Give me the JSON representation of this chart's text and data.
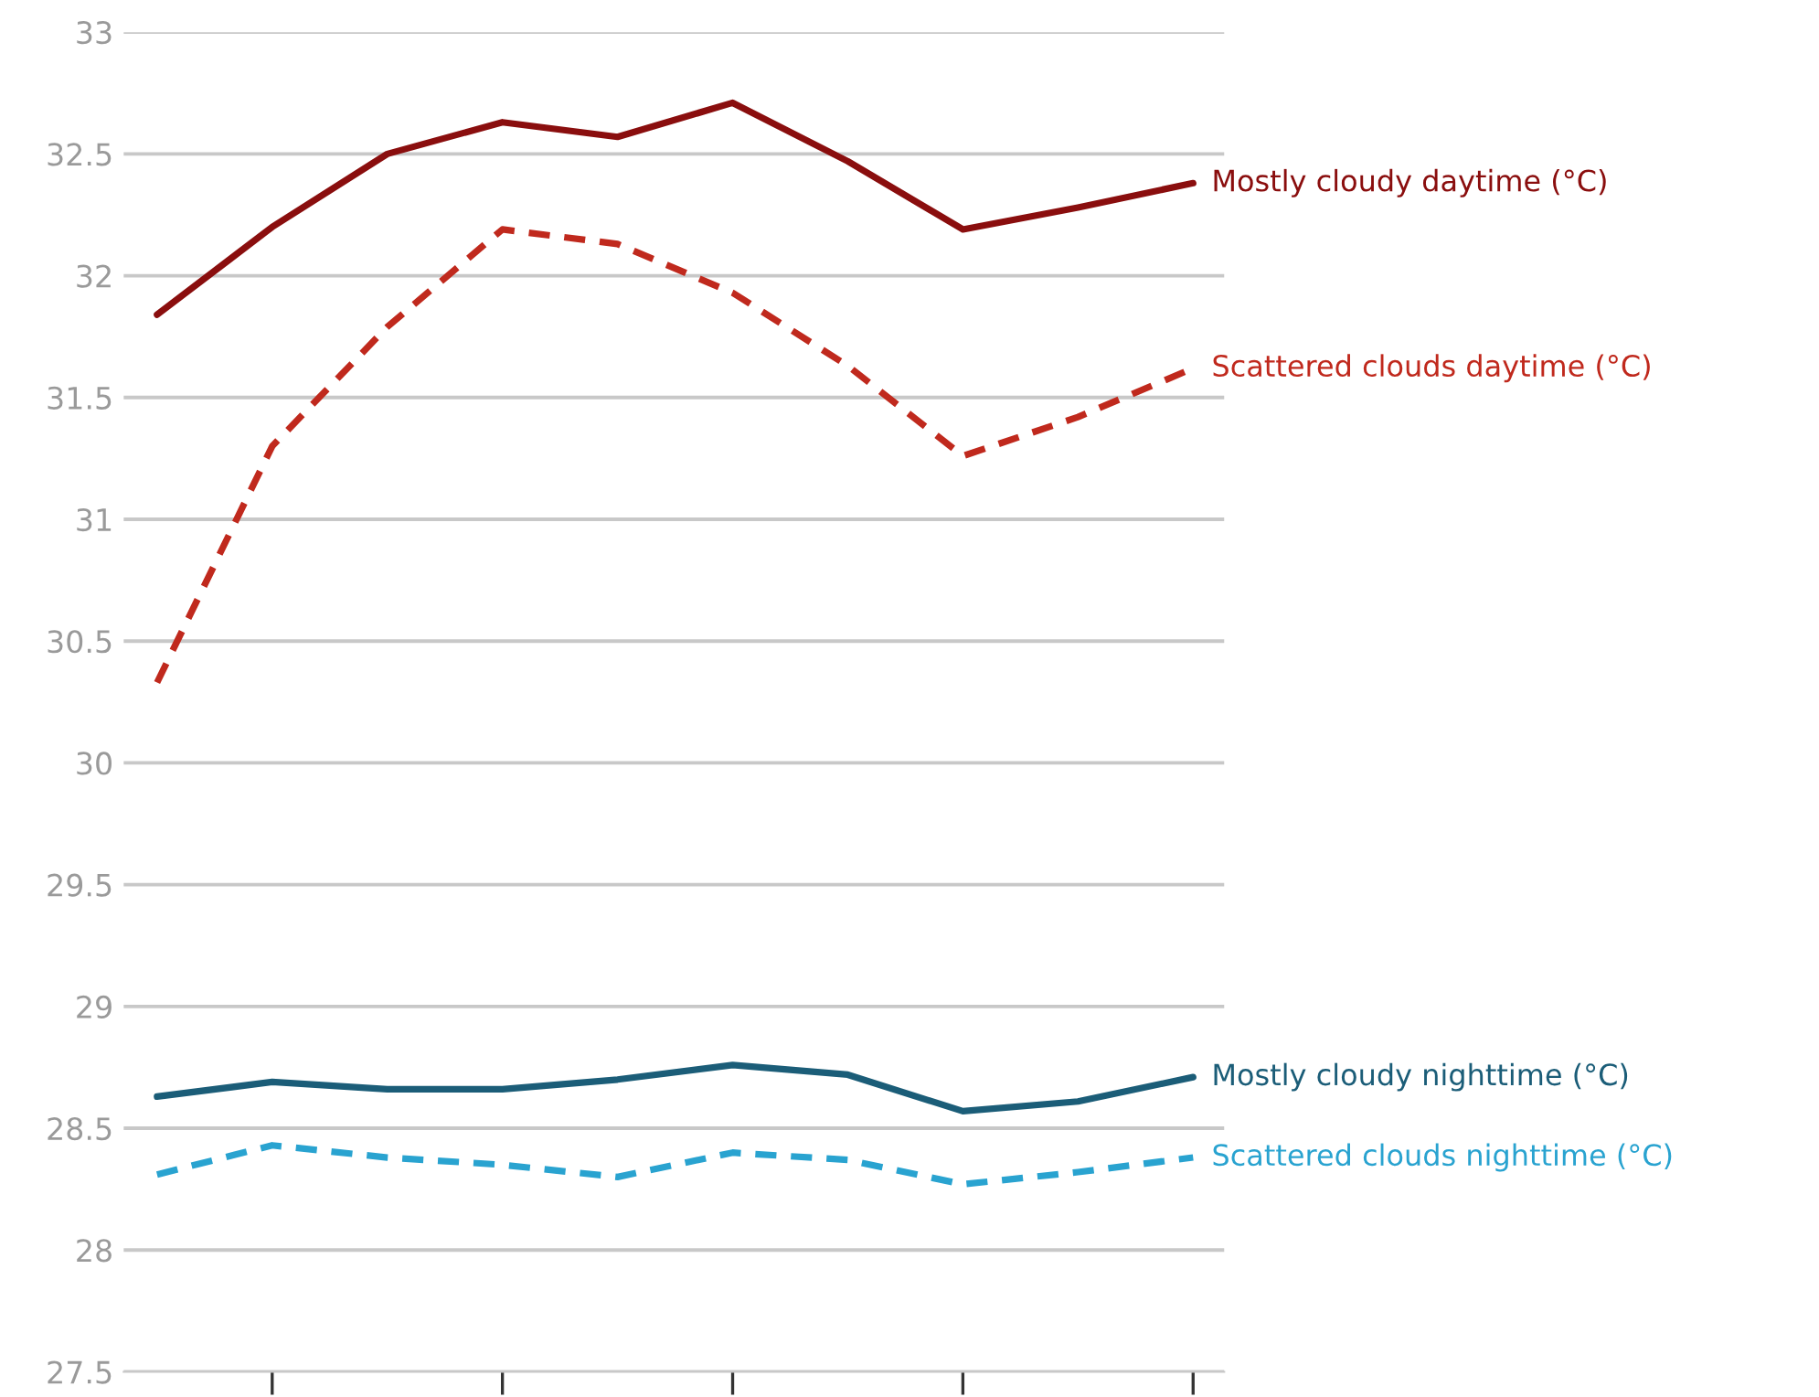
{
  "chart_data": {
    "type": "line",
    "categories": [
      null,
      null,
      null,
      null,
      null,
      null,
      null,
      null,
      null,
      null
    ],
    "ylim": [
      27.5,
      33
    ],
    "yticks": [
      27.5,
      28,
      28.5,
      29,
      29.5,
      30,
      30.5,
      31,
      31.5,
      32,
      32.5,
      33
    ],
    "grid": "y",
    "legend": false,
    "tick_labels": "y",
    "series": [
      {
        "name": "Mostly cloudy daytime (°C)",
        "color": "#8a0e0e",
        "line_style": "solid",
        "values": [
          31.84,
          32.2,
          32.5,
          32.63,
          32.57,
          32.71,
          32.47,
          32.19,
          32.28,
          32.38
        ]
      },
      {
        "name": "Scattered clouds daytime (°C)",
        "color": "#c0291d",
        "line_style": "dashed",
        "values": [
          30.33,
          31.3,
          31.79,
          32.19,
          32.13,
          31.93,
          31.63,
          31.26,
          31.42,
          31.62
        ]
      },
      {
        "name": "Mostly cloudy nighttime (°C)",
        "color": "#1b5d78",
        "line_style": "solid",
        "values": [
          28.63,
          28.69,
          28.66,
          28.66,
          28.7,
          28.76,
          28.72,
          28.57,
          28.61,
          28.71
        ]
      },
      {
        "name": "Scattered clouds nighttime (°C)",
        "color": "#29a3d0",
        "line_style": "dashed",
        "values": [
          28.31,
          28.43,
          28.38,
          28.35,
          28.3,
          28.4,
          28.37,
          28.27,
          28.32,
          28.38
        ]
      }
    ]
  }
}
